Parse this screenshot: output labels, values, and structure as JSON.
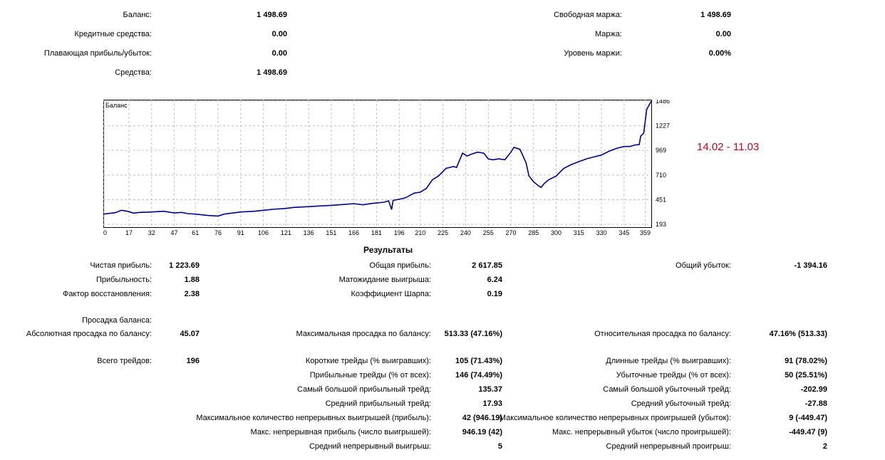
{
  "account": {
    "balance_label": "Баланс:",
    "balance": "1 498.69",
    "credit_label": "Кредитные средства:",
    "credit": "0.00",
    "floating_label": "Плавающая прибыль/убыток:",
    "floating": "0.00",
    "equity_label": "Средства:",
    "equity": "1 498.69",
    "free_margin_label": "Свободная маржа:",
    "free_margin": "1 498.69",
    "margin_label": "Маржа:",
    "margin": "0.00",
    "margin_level_label": "Уровень маржи:",
    "margin_level": "0.00%"
  },
  "annotation": "14.02 - 11.03",
  "chart_data": {
    "type": "line",
    "title": "Баланс",
    "x_ticks": [
      "0",
      "17",
      "32",
      "47",
      "61",
      "76",
      "91",
      "106",
      "121",
      "136",
      "151",
      "166",
      "181",
      "196",
      "210",
      "225",
      "240",
      "255",
      "270",
      "285",
      "300",
      "315",
      "330",
      "345",
      "359"
    ],
    "y_ticks": [
      "1486",
      "1227",
      "969",
      "710",
      "451",
      "193"
    ],
    "ylim": [
      193,
      1486
    ],
    "xlim": [
      0,
      363
    ],
    "series": [
      {
        "color": "#00008b",
        "points": [
          [
            0,
            300
          ],
          [
            8,
            315
          ],
          [
            12,
            340
          ],
          [
            16,
            330
          ],
          [
            20,
            310
          ],
          [
            24,
            318
          ],
          [
            32,
            322
          ],
          [
            40,
            330
          ],
          [
            47,
            312
          ],
          [
            52,
            318
          ],
          [
            56,
            305
          ],
          [
            61,
            300
          ],
          [
            66,
            292
          ],
          [
            70,
            285
          ],
          [
            76,
            280
          ],
          [
            80,
            300
          ],
          [
            86,
            312
          ],
          [
            91,
            322
          ],
          [
            100,
            330
          ],
          [
            106,
            340
          ],
          [
            112,
            350
          ],
          [
            121,
            360
          ],
          [
            126,
            370
          ],
          [
            136,
            378
          ],
          [
            144,
            386
          ],
          [
            151,
            392
          ],
          [
            158,
            400
          ],
          [
            166,
            410
          ],
          [
            172,
            398
          ],
          [
            178,
            412
          ],
          [
            186,
            425
          ],
          [
            189,
            440
          ],
          [
            191,
            348
          ],
          [
            192,
            445
          ],
          [
            196,
            455
          ],
          [
            200,
            470
          ],
          [
            206,
            520
          ],
          [
            210,
            530
          ],
          [
            214,
            570
          ],
          [
            218,
            660
          ],
          [
            222,
            700
          ],
          [
            227,
            780
          ],
          [
            232,
            800
          ],
          [
            234,
            790
          ],
          [
            238,
            940
          ],
          [
            241,
            910
          ],
          [
            244,
            930
          ],
          [
            248,
            950
          ],
          [
            252,
            940
          ],
          [
            255,
            880
          ],
          [
            258,
            870
          ],
          [
            262,
            880
          ],
          [
            266,
            870
          ],
          [
            270,
            950
          ],
          [
            272,
            1000
          ],
          [
            276,
            980
          ],
          [
            280,
            840
          ],
          [
            282,
            700
          ],
          [
            285,
            640
          ],
          [
            288,
            600
          ],
          [
            290,
            580
          ],
          [
            292,
            620
          ],
          [
            295,
            660
          ],
          [
            300,
            700
          ],
          [
            305,
            780
          ],
          [
            310,
            820
          ],
          [
            315,
            850
          ],
          [
            320,
            880
          ],
          [
            325,
            900
          ],
          [
            330,
            920
          ],
          [
            335,
            960
          ],
          [
            340,
            990
          ],
          [
            345,
            1010
          ],
          [
            349,
            1010
          ],
          [
            352,
            1025
          ],
          [
            355,
            1030
          ],
          [
            356,
            1120
          ],
          [
            358,
            1150
          ],
          [
            360,
            1400
          ],
          [
            363,
            1486
          ]
        ]
      }
    ]
  },
  "results": {
    "title": "Результаты",
    "net_profit_label": "Чистая прибыль:",
    "net_profit": "1 223.69",
    "gross_profit_label": "Общая прибыль:",
    "gross_profit": "2 617.85",
    "gross_loss_label": "Общий убыток:",
    "gross_loss": "-1 394.16",
    "profit_factor_label": "Прибыльность:",
    "profit_factor": "1.88",
    "expected_payoff_label": "Матожидание выигрыша:",
    "expected_payoff": "6.24",
    "recovery_factor_label": "Фактор восстановления:",
    "recovery_factor": "2.38",
    "sharpe_label": "Коэффициент Шарпа:",
    "sharpe": "0.19",
    "drawdown_header": "Просадка баланса:",
    "abs_dd_label": "Абсолютная просадка по балансу:",
    "abs_dd": "45.07",
    "max_dd_label": "Максимальная просадка по балансу:",
    "max_dd": "513.33 (47.16%)",
    "rel_dd_label": "Относительная просадка по балансу:",
    "rel_dd": "47.16% (513.33)",
    "total_trades_label": "Всего трейдов:",
    "total_trades": "196",
    "short_label": "Короткие трейды (% выигравших):",
    "short": "105 (71.43%)",
    "long_label": "Длинные трейды (% выигравших):",
    "long": "91 (78.02%)",
    "profit_trades_label": "Прибыльные трейды (% от всех):",
    "profit_trades": "146 (74.49%)",
    "loss_trades_label": "Убыточные трейды (% от всех):",
    "loss_trades": "50 (25.51%)",
    "largest_profit_label": "Самый большой прибыльный трейд:",
    "largest_profit": "135.37",
    "largest_loss_label": "Самый большой убыточный трейд:",
    "largest_loss": "-202.99",
    "avg_profit_label": "Средний прибыльный трейд:",
    "avg_profit": "17.93",
    "avg_loss_label": "Средний убыточный трейд:",
    "avg_loss": "-27.88",
    "max_cons_wins_label": "Максимальное количество непрерывных выигрышей (прибыль):",
    "max_cons_wins": "42 (946.19)",
    "max_cons_losses_label": "Максимальное количество непрерывных проигрышей (убыток):",
    "max_cons_losses": "9 (-449.47)",
    "max_cons_profit_label": "Макс. непрерывная прибыль (число выигрышей):",
    "max_cons_profit": "946.19 (42)",
    "max_cons_loss_label": "Макс. непрерывный убыток (число проигрышей):",
    "max_cons_loss": "-449.47 (9)",
    "avg_cons_wins_label": "Средний непрерывный выигрыш:",
    "avg_cons_wins": "5",
    "avg_cons_losses_label": "Средний непрерывный проигрыш:",
    "avg_cons_losses": "2"
  }
}
